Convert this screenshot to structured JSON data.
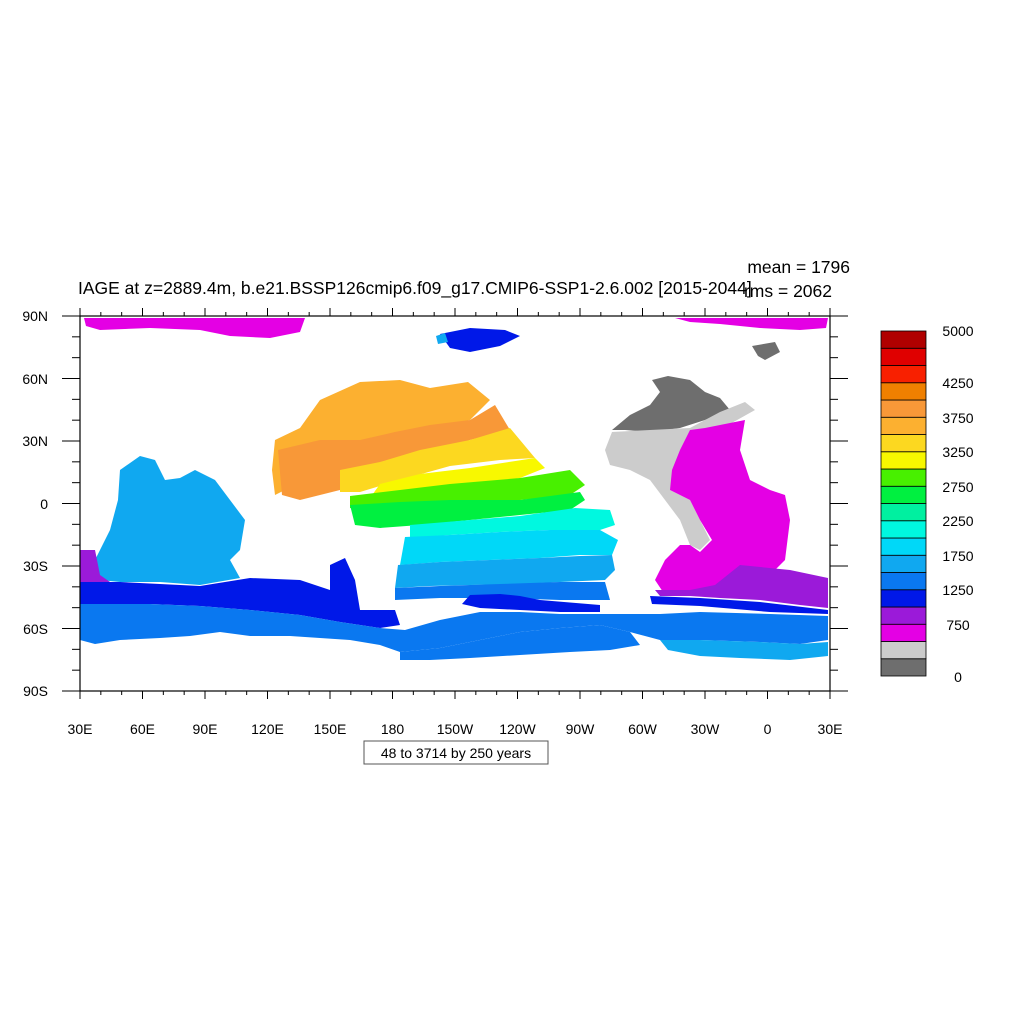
{
  "title": "IAGE at z=2889.4m, b.e21.BSSP126cmip6.f09_g17.CMIP6-SSP1-2.6.002 [2015-2044]",
  "stats": {
    "mean": "mean = 1796",
    "rms": "rms = 2062"
  },
  "footer_box": "48 to 3714 by 250 years",
  "axes": {
    "lat_labels": [
      "90N",
      "60N",
      "30N",
      "0",
      "30S",
      "60S",
      "90S"
    ],
    "lon_labels": [
      "30E",
      "60E",
      "90E",
      "120E",
      "150E",
      "180",
      "150W",
      "120W",
      "90W",
      "60W",
      "30W",
      "0",
      "30E"
    ]
  },
  "colorbar": {
    "colors": [
      "#6e6e6e",
      "#cccccc",
      "#e400e4",
      "#9b1ad9",
      "#0018e8",
      "#0a78f0",
      "#10a8f0",
      "#00d8f8",
      "#00f8e0",
      "#00f0a0",
      "#00f040",
      "#48f000",
      "#f8f800",
      "#fcd820",
      "#fcb030",
      "#f89838",
      "#f08000",
      "#f82000",
      "#e00000",
      "#b00000"
    ],
    "labels": [
      "0",
      "750",
      "1250",
      "1750",
      "2250",
      "2750",
      "3250",
      "3750",
      "4250",
      "5000"
    ]
  }
}
